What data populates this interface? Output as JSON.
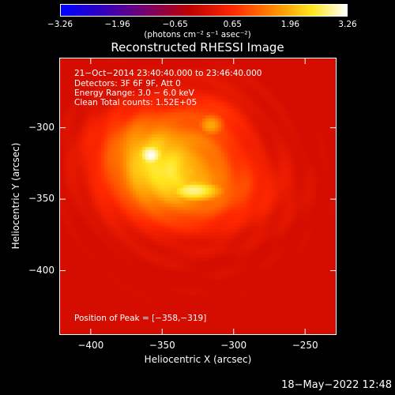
{
  "chart_data": {
    "type": "heatmap",
    "title": "Reconstructed RHESSI Image",
    "xlabel": "Heliocentric X (arcsec)",
    "ylabel": "Heliocentric Y (arcsec)",
    "xlim": [
      -422,
      -228
    ],
    "ylim": [
      -445,
      -251
    ],
    "xticks": [
      -400,
      -350,
      -300,
      -250
    ],
    "yticks": [
      -300,
      -350,
      -400
    ],
    "xtick_labels": [
      "−400",
      "−350",
      "−300",
      "−250"
    ],
    "ytick_labels": [
      "−300",
      "−350",
      "−400"
    ],
    "colorbar": {
      "min": -3.26,
      "max": 3.26,
      "ticks": [
        -3.26,
        -1.96,
        -0.65,
        0.65,
        1.96,
        3.26
      ],
      "tick_labels": [
        "−3.26",
        "−1.96",
        "−0.65",
        "0.65",
        "1.96",
        "3.26"
      ],
      "unit_label": "(photons cm⁻² s⁻¹ asec⁻²)"
    },
    "sources": [
      {
        "x": -358,
        "y": -319,
        "level": 3.26,
        "sx": 9,
        "sy": 8
      },
      {
        "x": -328,
        "y": -344,
        "level": 2.9,
        "sx": 18,
        "sy": 7
      },
      {
        "x": -368,
        "y": -310,
        "level": 1.8,
        "sx": 14,
        "sy": 7
      },
      {
        "x": -316,
        "y": -298,
        "level": 1.9,
        "sx": 8,
        "sy": 7
      },
      {
        "x": -342,
        "y": -338,
        "level": 1.6,
        "sx": 12,
        "sy": 7
      }
    ],
    "info_lines": [
      "21−Oct−2014 23:40:40.000 to 23:46:40.000",
      "Detectors: 3F 6F 9F, Att 0",
      "Energy Range: 3.0 − 6.0 keV",
      "Clean    Total counts: 1.52E+05"
    ],
    "peak_text": "Position of Peak = [−358,−319]",
    "timestamp": "18−May−2022 12:48"
  }
}
